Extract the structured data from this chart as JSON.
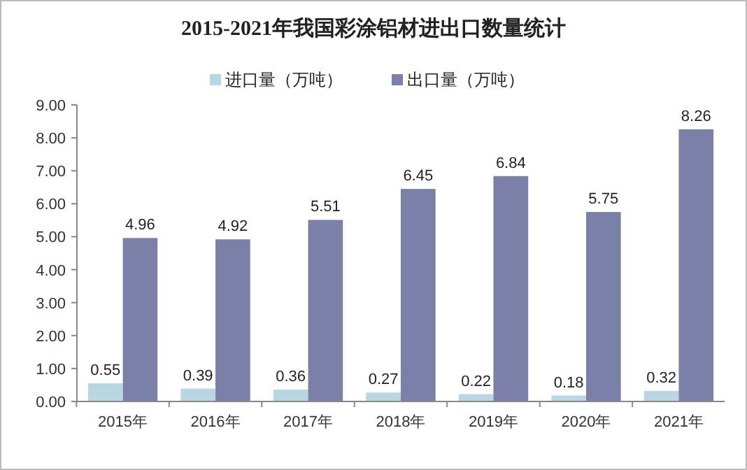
{
  "chart_data": {
    "type": "bar",
    "title": "2015-2021年我国彩涂铝材进出口数量统计",
    "categories": [
      "2015年",
      "2016年",
      "2017年",
      "2018年",
      "2019年",
      "2020年",
      "2021年"
    ],
    "series": [
      {
        "name": "进口量（万吨）",
        "color": "#b9d7e3",
        "values": [
          0.55,
          0.39,
          0.36,
          0.27,
          0.22,
          0.18,
          0.32
        ]
      },
      {
        "name": "出口量（万吨）",
        "color": "#7b80a8",
        "values": [
          4.96,
          4.92,
          5.51,
          6.45,
          6.84,
          5.75,
          8.26
        ]
      }
    ],
    "ylim": [
      0,
      9
    ],
    "yticks": [
      {
        "value": 0,
        "label": "0.00"
      },
      {
        "value": 1,
        "label": "1.00"
      },
      {
        "value": 2,
        "label": "2.00"
      },
      {
        "value": 3,
        "label": "3.00"
      },
      {
        "value": 4,
        "label": "4.00"
      },
      {
        "value": 5,
        "label": "5.00"
      },
      {
        "value": 6,
        "label": "6.00"
      },
      {
        "value": 7,
        "label": "7.00"
      },
      {
        "value": 8,
        "label": "8.00"
      },
      {
        "value": 9,
        "label": "9.00"
      }
    ],
    "legend": "top",
    "data_labels": true
  }
}
